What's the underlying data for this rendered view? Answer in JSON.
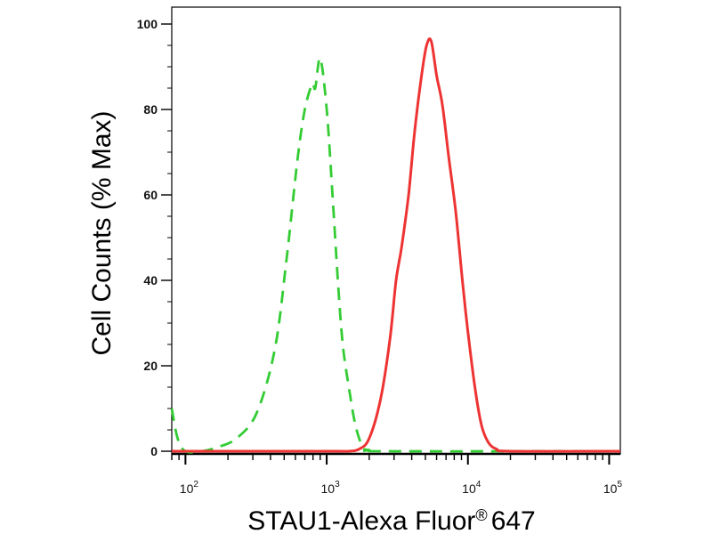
{
  "chart_data": {
    "type": "line",
    "title": "",
    "xlabel": "STAU1-Alexa Fluor",
    "xlabel_suffix": "647",
    "xlabel_sup": "®",
    "ylabel": "Cell Counts (% Max)",
    "x_scale": "log",
    "xlim": [
      80,
      120000
    ],
    "ylim": [
      0,
      100
    ],
    "x_ticks": [
      {
        "value": 100,
        "base": "10",
        "exp": "2"
      },
      {
        "value": 1000,
        "base": "10",
        "exp": "3"
      },
      {
        "value": 10000,
        "base": "10",
        "exp": "4"
      },
      {
        "value": 100000,
        "base": "10",
        "exp": "5"
      }
    ],
    "y_ticks": [
      0,
      20,
      40,
      60,
      80,
      100
    ],
    "grid": false,
    "legend": "none",
    "series": [
      {
        "color": "#33cc33",
        "style": "dashed",
        "points": [
          [
            80,
            10
          ],
          [
            88,
            3
          ],
          [
            100,
            0
          ],
          [
            130,
            0
          ],
          [
            170,
            1
          ],
          [
            230,
            3
          ],
          [
            320,
            9
          ],
          [
            430,
            24
          ],
          [
            520,
            45
          ],
          [
            620,
            68
          ],
          [
            700,
            80
          ],
          [
            790,
            86
          ],
          [
            830,
            85
          ],
          [
            900,
            92
          ],
          [
            1000,
            80
          ],
          [
            1100,
            60
          ],
          [
            1200,
            40
          ],
          [
            1300,
            25
          ],
          [
            1450,
            14
          ],
          [
            1600,
            6
          ],
          [
            1800,
            1
          ],
          [
            2000,
            0.3
          ],
          [
            2500,
            0
          ],
          [
            100000,
            0
          ]
        ]
      },
      {
        "color": "#ee3333",
        "style": "solid",
        "points": [
          [
            80,
            0
          ],
          [
            1000,
            0
          ],
          [
            1400,
            0
          ],
          [
            1700,
            0.5
          ],
          [
            2000,
            3
          ],
          [
            2400,
            12
          ],
          [
            2800,
            26
          ],
          [
            3100,
            40
          ],
          [
            3400,
            48
          ],
          [
            3800,
            60
          ],
          [
            4200,
            75
          ],
          [
            4700,
            88
          ],
          [
            5100,
            95
          ],
          [
            5500,
            96
          ],
          [
            6000,
            88
          ],
          [
            6600,
            81
          ],
          [
            7300,
            69
          ],
          [
            8200,
            56
          ],
          [
            9200,
            39
          ],
          [
            10000,
            28
          ],
          [
            11200,
            15
          ],
          [
            12500,
            6
          ],
          [
            14000,
            2
          ],
          [
            16000,
            0.5
          ],
          [
            20000,
            0
          ],
          [
            120000,
            0
          ]
        ]
      }
    ]
  }
}
